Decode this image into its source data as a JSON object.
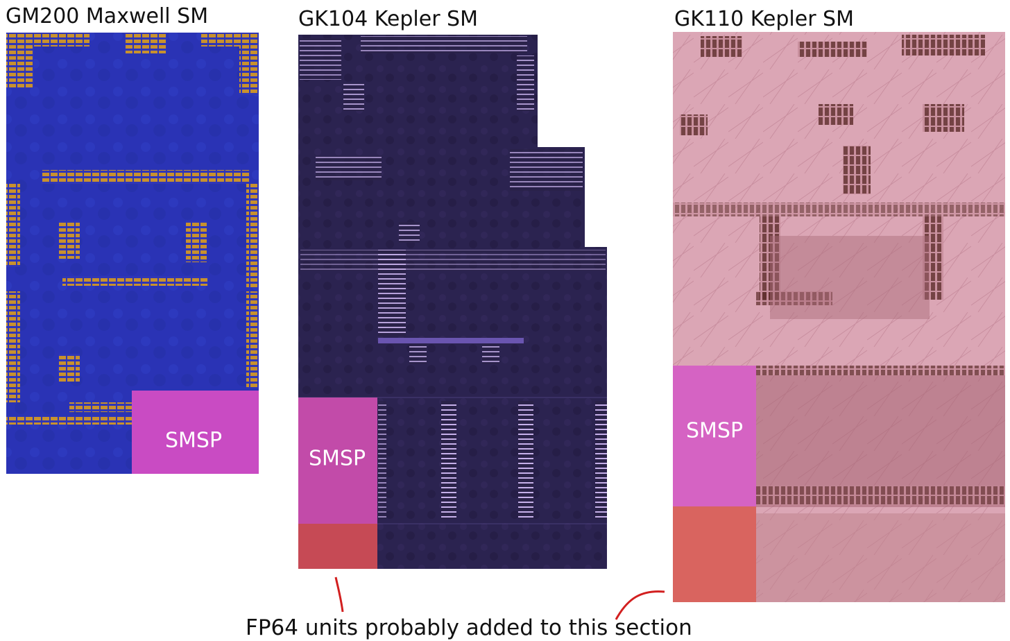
{
  "panels": [
    {
      "title": "GM200 Maxwell SM",
      "label": "SMSP"
    },
    {
      "title": "GK104 Kepler SM",
      "label": "SMSP"
    },
    {
      "title": "GK110 Kepler SM",
      "label": "SMSP"
    }
  ],
  "caption": "FP64 units probably added to this section"
}
